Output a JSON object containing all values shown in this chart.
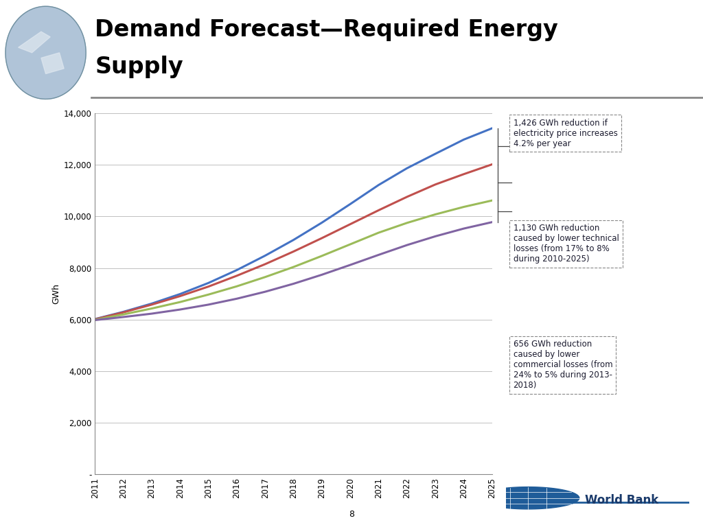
{
  "title_line1": "Demand Forecast—Required Energy",
  "title_line2": "Supply",
  "ylabel": "GWh",
  "years": [
    2011,
    2012,
    2013,
    2014,
    2015,
    2016,
    2017,
    2018,
    2019,
    2020,
    2021,
    2022,
    2023,
    2024,
    2025
  ],
  "series": {
    "blue": [
      6020,
      6300,
      6620,
      6990,
      7420,
      7920,
      8480,
      9090,
      9760,
      10480,
      11220,
      11870,
      12430,
      12980,
      13420
    ],
    "red": [
      6010,
      6280,
      6580,
      6910,
      7280,
      7700,
      8150,
      8640,
      9160,
      9700,
      10240,
      10760,
      11240,
      11640,
      12020
    ],
    "olive": [
      5990,
      6200,
      6430,
      6680,
      6970,
      7290,
      7650,
      8040,
      8470,
      8920,
      9370,
      9750,
      10080,
      10370,
      10620
    ],
    "purple": [
      5980,
      6100,
      6230,
      6390,
      6580,
      6810,
      7080,
      7390,
      7740,
      8120,
      8510,
      8890,
      9230,
      9530,
      9780
    ]
  },
  "colors": {
    "blue": "#4472C4",
    "red": "#C0504D",
    "olive": "#9BBB59",
    "purple": "#8064A2"
  },
  "ylim": [
    0,
    14000
  ],
  "yticks": [
    0,
    2000,
    4000,
    6000,
    8000,
    10000,
    12000,
    14000
  ],
  "ytick_labels": [
    "-",
    "2,000",
    "4,000",
    "6,000",
    "8,000",
    "10,000",
    "12,000",
    "14,000"
  ],
  "annotation1": "1,426 GWh reduction if\nelectricity price increases\n4.2% per year",
  "annotation2": "1,130 GWh reduction\ncaused by lower technical\nlosses (from 17% to 8%\nduring 2010-2025)",
  "annotation3": "656 GWh reduction\ncaused by lower\ncommercial losses (from\n24% to 5% during 2013-\n2018)",
  "bg_color": "#ffffff",
  "plot_bg": "#ffffff",
  "grid_color": "#c0c0c0",
  "page_num": "8",
  "left_panel_color": "#d0d8e0",
  "header_line_color": "#888888"
}
